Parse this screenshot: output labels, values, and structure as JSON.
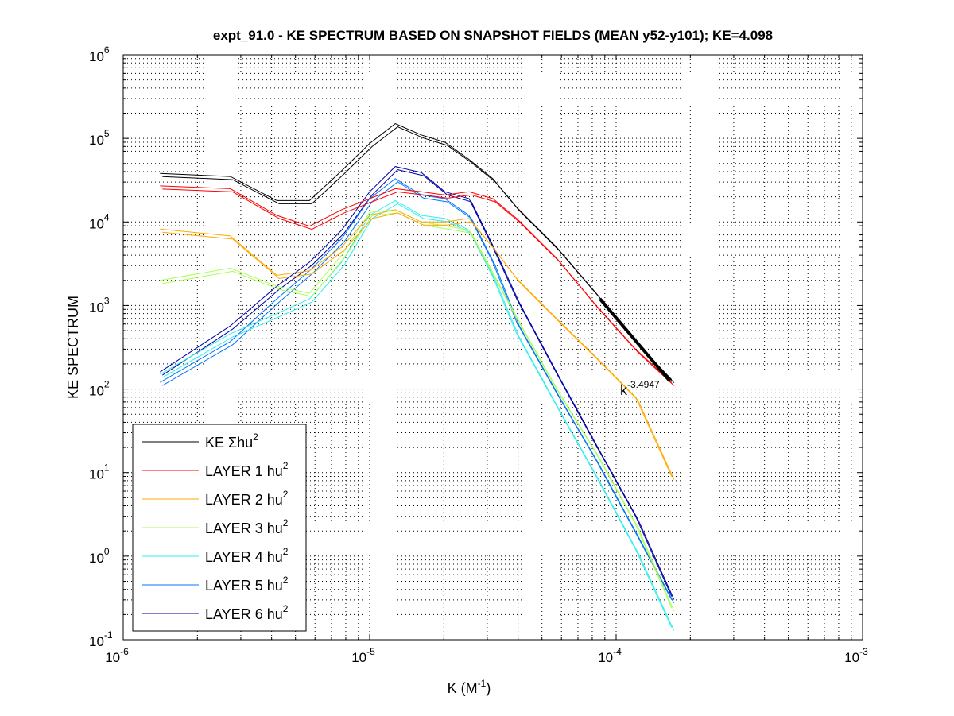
{
  "chart_data": {
    "type": "line",
    "title": "expt_91.0 - KE SPECTRUM BASED ON SNAPSHOT FIELDS (MEAN y52-y101); KE=4.098",
    "xlabel_base": "K  (M",
    "xlabel_sup": "-1",
    "xlabel_end": ")",
    "ylabel": "KE SPECTRUM",
    "xscale": "log",
    "yscale": "log",
    "xlim": [
      1e-06,
      0.001
    ],
    "ylim": [
      0.1,
      1000000.0
    ],
    "grid": true,
    "legend_position": "bottom-left",
    "x_ticks": [
      {
        "base": "10",
        "exp": "-6",
        "value": 1e-06
      },
      {
        "base": "10",
        "exp": "-5",
        "value": 1e-05
      },
      {
        "base": "10",
        "exp": "-4",
        "value": 0.0001
      },
      {
        "base": "10",
        "exp": "-3",
        "value": 0.001
      }
    ],
    "y_ticks": [
      {
        "base": "10",
        "exp": "-1",
        "value": 0.1
      },
      {
        "base": "10",
        "exp": "0",
        "value": 1
      },
      {
        "base": "10",
        "exp": "1",
        "value": 10
      },
      {
        "base": "10",
        "exp": "2",
        "value": 100
      },
      {
        "base": "10",
        "exp": "3",
        "value": 1000
      },
      {
        "base": "10",
        "exp": "4",
        "value": 10000
      },
      {
        "base": "10",
        "exp": "5",
        "value": 100000
      },
      {
        "base": "10",
        "exp": "6",
        "value": 1000000
      }
    ],
    "x": [
      1.41e-06,
      2.72e-06,
      4.2e-06,
      5.7e-06,
      7.7e-06,
      1e-05,
      1.27e-05,
      1.62e-05,
      2.02e-05,
      2.53e-05,
      3.16e-05,
      3.95e-05,
      5.73e-05,
      8.3e-05,
      0.00012,
      0.000168
    ],
    "series": [
      {
        "name": "KE Σhu",
        "sup": "2",
        "color": "#000000",
        "values": [
          38000,
          35000,
          18000,
          18000,
          41000,
          87000,
          150000,
          110000,
          90000,
          56000,
          33000,
          15000,
          5000,
          1400,
          370,
          130
        ]
      },
      {
        "name": "LAYER 1 hu",
        "sup": "2",
        "color": "#ff0000",
        "values": [
          27000,
          25000,
          12000,
          8900,
          14000,
          19000,
          25000,
          23000,
          21000,
          23000,
          19000,
          11000,
          3700,
          1000,
          300,
          120
        ]
      },
      {
        "name": "LAYER 2 hu",
        "sup": "2",
        "color": "#ffaa00",
        "values": [
          8200,
          6800,
          2300,
          2600,
          5000,
          12000,
          14000,
          10000,
          10000,
          11000,
          5000,
          2100,
          700,
          240,
          80,
          9
        ]
      },
      {
        "name": "LAYER 3 hu",
        "sup": "2",
        "color": "#aaff55",
        "values": [
          2000,
          2800,
          1700,
          1400,
          4000,
          13000,
          14000,
          10000,
          9000,
          8000,
          2400,
          700,
          100,
          17,
          2.4,
          0.24
        ]
      },
      {
        "name": "LAYER 4 hu",
        "sup": "2",
        "color": "#33eeee",
        "values": [
          150,
          460,
          800,
          1200,
          3300,
          12000,
          18000,
          12000,
          11000,
          8000,
          2200,
          460,
          63,
          9,
          1.2,
          0.14
        ]
      },
      {
        "name": "LAYER 5 hu",
        "sup": "2",
        "color": "#0077ff",
        "values": [
          120,
          370,
          1200,
          2600,
          6300,
          19000,
          33000,
          21000,
          19000,
          12000,
          3300,
          630,
          90,
          14,
          1.9,
          0.3
        ]
      },
      {
        "name": "LAYER 6 hu",
        "sup": "2",
        "color": "#0000aa",
        "values": [
          160,
          570,
          1700,
          3300,
          8000,
          23000,
          46000,
          39000,
          23000,
          19000,
          5000,
          1200,
          155,
          21,
          3,
          0.33
        ]
      }
    ],
    "fit": {
      "label_base": "k",
      "label_exp": "-3.4947",
      "slope": -3.4947,
      "x": [
        8.6e-05,
        0.000165
      ],
      "y": [
        1200,
        125
      ],
      "color": "#000000"
    }
  }
}
